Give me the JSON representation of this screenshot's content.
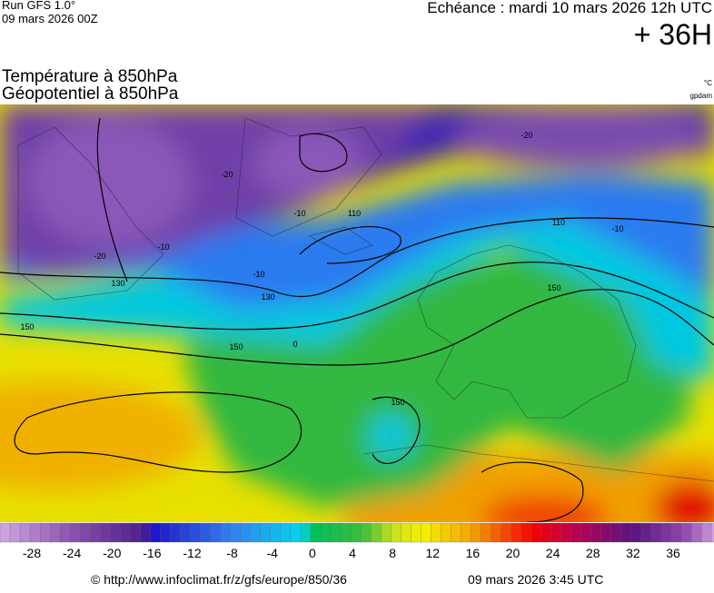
{
  "header": {
    "run": "Run GFS 1.0°",
    "run_date": "09 mars 2026 00Z",
    "valid": "Echéance : mardi 10 mars 2026 12h UTC",
    "lead": "+ 36H",
    "title_temperature": "Température à 850hPa",
    "title_geopotential": "Géopotentiel à 850hPa",
    "unit_temperature": "°C",
    "unit_geopotential": "gpdam"
  },
  "map": {
    "labels": [
      "-20",
      "-20",
      "-20",
      "-10",
      "-10",
      "-10",
      "-10",
      "0",
      "110",
      "110",
      "130",
      "130",
      "150",
      "150",
      "150",
      "150"
    ]
  },
  "legend": {
    "ticks": [
      -28,
      -24,
      -20,
      -16,
      -12,
      -8,
      -4,
      0,
      4,
      8,
      12,
      16,
      20,
      24,
      28,
      32,
      36
    ]
  },
  "footer": {
    "source": "© http://www.infoclimat.fr/z/gfs/europe/850/36",
    "generated": "09 mars 2026  3:45 UTC"
  }
}
